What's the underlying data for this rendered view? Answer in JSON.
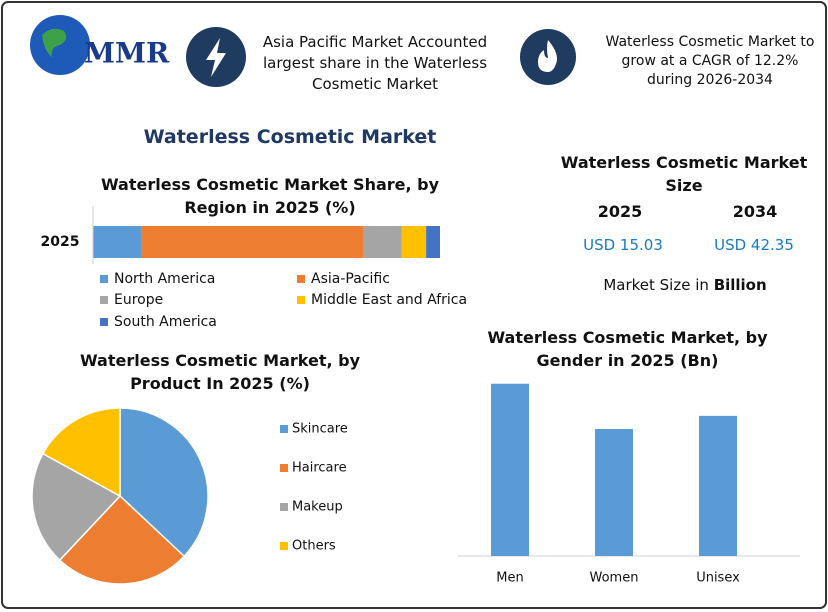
{
  "header": {
    "logo_text": "MMR",
    "callouts": [
      "Asia Pacific Market Accounted largest share in the Waterless Cosmetic Market",
      "Waterless Cosmetic Market to grow at a CAGR of 12.2% during 2026-2034"
    ]
  },
  "title": "Waterless Cosmetic Market",
  "market_size": {
    "title": "Waterless Cosmetic Market Size",
    "years": [
      "2025",
      "2034"
    ],
    "values": [
      "USD 15.03",
      "USD 42.35"
    ],
    "note": "Market Size in",
    "note_unit": "Billion"
  },
  "chart_data": [
    {
      "type": "bar",
      "stacked": true,
      "orientation": "horizontal",
      "title": "Waterless Cosmetic Market Share, by Region in 2025 (%)",
      "categories": [
        "2025"
      ],
      "series": [
        {
          "name": "North America",
          "color": "#5b9bd5",
          "values": [
            14
          ]
        },
        {
          "name": "Asia-Pacific",
          "color": "#ed7d31",
          "values": [
            64
          ]
        },
        {
          "name": "Europe",
          "color": "#a5a5a5",
          "values": [
            11
          ]
        },
        {
          "name": "Middle East and Africa",
          "color": "#ffc000",
          "values": [
            7
          ]
        },
        {
          "name": "South America",
          "color": "#4472c4",
          "values": [
            4
          ]
        }
      ]
    },
    {
      "type": "pie",
      "title": "Waterless Cosmetic Market, by Product In 2025 (%)",
      "categories": [
        "Skincare",
        "Haircare",
        "Makeup",
        "Others"
      ],
      "values": [
        37,
        25,
        21,
        17
      ],
      "colors": [
        "#5b9bd5",
        "#ed7d31",
        "#a5a5a5",
        "#ffc000"
      ]
    },
    {
      "type": "bar",
      "title": "Waterless Cosmetic Market, by Gender in 2025 (Bn)",
      "categories": [
        "Men",
        "Women",
        "Unisex"
      ],
      "values": [
        5.9,
        4.35,
        4.8
      ],
      "color": "#5b9bd5"
    }
  ]
}
